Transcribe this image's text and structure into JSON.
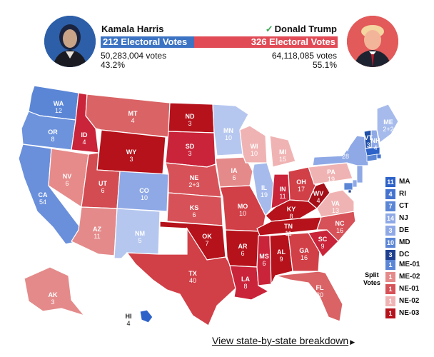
{
  "harris": {
    "name": "Kamala Harris",
    "electoral_votes": "212 Electoral Votes",
    "popular_votes": "50,283,004 votes",
    "percent": "43.2%",
    "color": "#3c73c3"
  },
  "trump": {
    "name": "Donald Trump",
    "electoral_votes": "326 Electoral Votes",
    "popular_votes": "64,118,085 votes",
    "percent": "55.1%",
    "color": "#e04b56",
    "winner_mark": "✓"
  },
  "ev_split": {
    "harris": 212,
    "trump": 326
  },
  "states": [
    {
      "abbr": "WA",
      "ev": "12",
      "color": "#5b86d6"
    },
    {
      "abbr": "OR",
      "ev": "8",
      "color": "#6d93dd"
    },
    {
      "abbr": "CA",
      "ev": "54",
      "color": "#6a8fdb"
    },
    {
      "abbr": "NV",
      "ev": "6",
      "color": "#e68a8a"
    },
    {
      "abbr": "ID",
      "ev": "4",
      "color": "#c9243a"
    },
    {
      "abbr": "MT",
      "ev": "4",
      "color": "#d96365"
    },
    {
      "abbr": "WY",
      "ev": "3",
      "color": "#b5121b"
    },
    {
      "abbr": "UT",
      "ev": "6",
      "color": "#d34c52"
    },
    {
      "abbr": "AZ",
      "ev": "11",
      "color": "#e48a8a"
    },
    {
      "abbr": "CO",
      "ev": "10",
      "color": "#8fa9e6"
    },
    {
      "abbr": "NM",
      "ev": "5",
      "color": "#b6c7ef"
    },
    {
      "abbr": "ND",
      "ev": "3",
      "color": "#b5121b"
    },
    {
      "abbr": "SD",
      "ev": "3",
      "color": "#c9243a"
    },
    {
      "abbr": "NE",
      "ev": "2+3",
      "color": "#d65258"
    },
    {
      "abbr": "KS",
      "ev": "6",
      "color": "#d65258"
    },
    {
      "abbr": "OK",
      "ev": "7",
      "color": "#b5121b"
    },
    {
      "abbr": "TX",
      "ev": "40",
      "color": "#d13f47"
    },
    {
      "abbr": "MN",
      "ev": "10",
      "color": "#b6c7ef"
    },
    {
      "abbr": "IA",
      "ev": "6",
      "color": "#e48a8a"
    },
    {
      "abbr": "MO",
      "ev": "10",
      "color": "#d13f47"
    },
    {
      "abbr": "AR",
      "ev": "6",
      "color": "#b5121b"
    },
    {
      "abbr": "LA",
      "ev": "8",
      "color": "#c9243a"
    },
    {
      "abbr": "WI",
      "ev": "10",
      "color": "#f0b3b3"
    },
    {
      "abbr": "IL",
      "ev": "19",
      "color": "#a6bbec"
    },
    {
      "abbr": "MI",
      "ev": "15",
      "color": "#f0b3b3"
    },
    {
      "abbr": "IN",
      "ev": "11",
      "color": "#c9243a"
    },
    {
      "abbr": "OH",
      "ev": "17",
      "color": "#d13f47"
    },
    {
      "abbr": "KY",
      "ev": "8",
      "color": "#b5121b"
    },
    {
      "abbr": "TN",
      "ev": "11",
      "color": "#b5121b"
    },
    {
      "abbr": "MS",
      "ev": "6",
      "color": "#c9243a"
    },
    {
      "abbr": "AL",
      "ev": "9",
      "color": "#b5121b"
    },
    {
      "abbr": "GA",
      "ev": "16",
      "color": "#d13f47"
    },
    {
      "abbr": "FL",
      "ev": "30",
      "color": "#d96365"
    },
    {
      "abbr": "SC",
      "ev": "9",
      "color": "#c9243a"
    },
    {
      "abbr": "NC",
      "ev": "16",
      "color": "#d65258"
    },
    {
      "abbr": "VA",
      "ev": "13",
      "color": "#f0b3b3"
    },
    {
      "abbr": "WV",
      "ev": "4",
      "color": "#a40f18"
    },
    {
      "abbr": "PA",
      "ev": "19",
      "color": "#f0b3b3"
    },
    {
      "abbr": "NY",
      "ev": "28",
      "color": "#8fa9e6"
    },
    {
      "abbr": "VT",
      "ev": "3",
      "color": "#1f4fa8"
    },
    {
      "abbr": "NH",
      "ev": "4",
      "color": "#8fa9e6"
    },
    {
      "abbr": "ME",
      "ev": "2+2",
      "color": "#a6bbec"
    },
    {
      "abbr": "AK",
      "ev": "3",
      "color": "#e48a8a"
    },
    {
      "abbr": "HI",
      "ev": "4",
      "color": "#2d62c8"
    }
  ],
  "small_states": [
    {
      "ev": "11",
      "abbr": "MA",
      "color": "#2d62c8"
    },
    {
      "ev": "4",
      "abbr": "RI",
      "color": "#4473cf"
    },
    {
      "ev": "7",
      "abbr": "CT",
      "color": "#5b86d6"
    },
    {
      "ev": "14",
      "abbr": "NJ",
      "color": "#8fa9e6"
    },
    {
      "ev": "3",
      "abbr": "DE",
      "color": "#8fa9e6"
    },
    {
      "ev": "10",
      "abbr": "MD",
      "color": "#5b86d6"
    },
    {
      "ev": "3",
      "abbr": "DC",
      "color": "#1f3f90"
    }
  ],
  "split_votes": {
    "label_line1": "Split",
    "label_line2": "Votes",
    "items": [
      {
        "ev": "1",
        "abbr": "ME-01",
        "color": "#5b86d6"
      },
      {
        "ev": "1",
        "abbr": "ME-02",
        "color": "#e48a8a"
      },
      {
        "ev": "1",
        "abbr": "NE-01",
        "color": "#d65258"
      },
      {
        "ev": "1",
        "abbr": "NE-02",
        "color": "#f0b3b3"
      },
      {
        "ev": "1",
        "abbr": "NE-03",
        "color": "#b5121b"
      }
    ]
  },
  "footer": {
    "link_text": "View state-by-state breakdown",
    "arrow": "▶"
  }
}
